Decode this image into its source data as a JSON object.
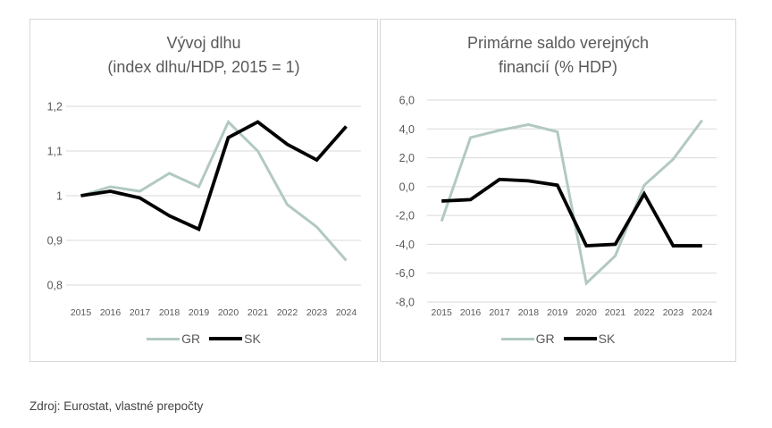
{
  "source": "Zdroj: Eurostat, vlastné prepočty",
  "colors": {
    "gr_line": "#b2c9c3",
    "sk_line": "#000000",
    "grid": "#d9d9d9",
    "panel_border": "#d7d7d7",
    "text": "#595959"
  },
  "chart_data": [
    {
      "type": "line",
      "title_line1": "Vývoj dlhu",
      "title_line2": "(index dlhu/HDP, 2015 = 1)",
      "xlabel": "",
      "ylabel": "",
      "grid": true,
      "legend_position": "bottom",
      "ylim": [
        0.8,
        1.2
      ],
      "y_ticks": [
        {
          "value": 1.2,
          "label": "1,2"
        },
        {
          "value": 1.1,
          "label": "1,1"
        },
        {
          "value": 1.0,
          "label": "1"
        },
        {
          "value": 0.9,
          "label": "0,9"
        },
        {
          "value": 0.8,
          "label": "0,8"
        }
      ],
      "categories": [
        "2015",
        "2016",
        "2017",
        "2018",
        "2019",
        "2020",
        "2021",
        "2022",
        "2023",
        "2024"
      ],
      "series": [
        {
          "name": "GR",
          "color": "#b2c9c3",
          "values": [
            1.0,
            1.02,
            1.01,
            1.05,
            1.02,
            1.165,
            1.1,
            0.98,
            0.93,
            0.855
          ]
        },
        {
          "name": "SK",
          "color": "#000000",
          "values": [
            1.0,
            1.01,
            0.995,
            0.955,
            0.925,
            1.13,
            1.165,
            1.115,
            1.08,
            1.155
          ]
        }
      ]
    },
    {
      "type": "line",
      "title_line1": "Primárne saldo verejných",
      "title_line2": "financií (% HDP)",
      "xlabel": "",
      "ylabel": "",
      "grid": true,
      "legend_position": "bottom",
      "ylim": [
        -8,
        6
      ],
      "y_ticks": [
        {
          "value": 6,
          "label": "6,0"
        },
        {
          "value": 4,
          "label": "4,0"
        },
        {
          "value": 2,
          "label": "2,0"
        },
        {
          "value": 0,
          "label": "0,0"
        },
        {
          "value": -2,
          "label": "-2,0"
        },
        {
          "value": -4,
          "label": "-4,0"
        },
        {
          "value": -6,
          "label": "-6,0"
        },
        {
          "value": -8,
          "label": "-8,0"
        }
      ],
      "categories": [
        "2015",
        "2016",
        "2017",
        "2018",
        "2019",
        "2020",
        "2021",
        "2022",
        "2023",
        "2024"
      ],
      "series": [
        {
          "name": "GR",
          "color": "#b2c9c3",
          "values": [
            -2.4,
            3.4,
            3.9,
            4.3,
            3.8,
            -6.7,
            -4.8,
            0.1,
            1.9,
            4.6
          ]
        },
        {
          "name": "SK",
          "color": "#000000",
          "values": [
            -1.0,
            -0.9,
            0.5,
            0.4,
            0.1,
            -4.1,
            -4.0,
            -0.5,
            -4.1,
            -4.1
          ]
        }
      ]
    }
  ]
}
